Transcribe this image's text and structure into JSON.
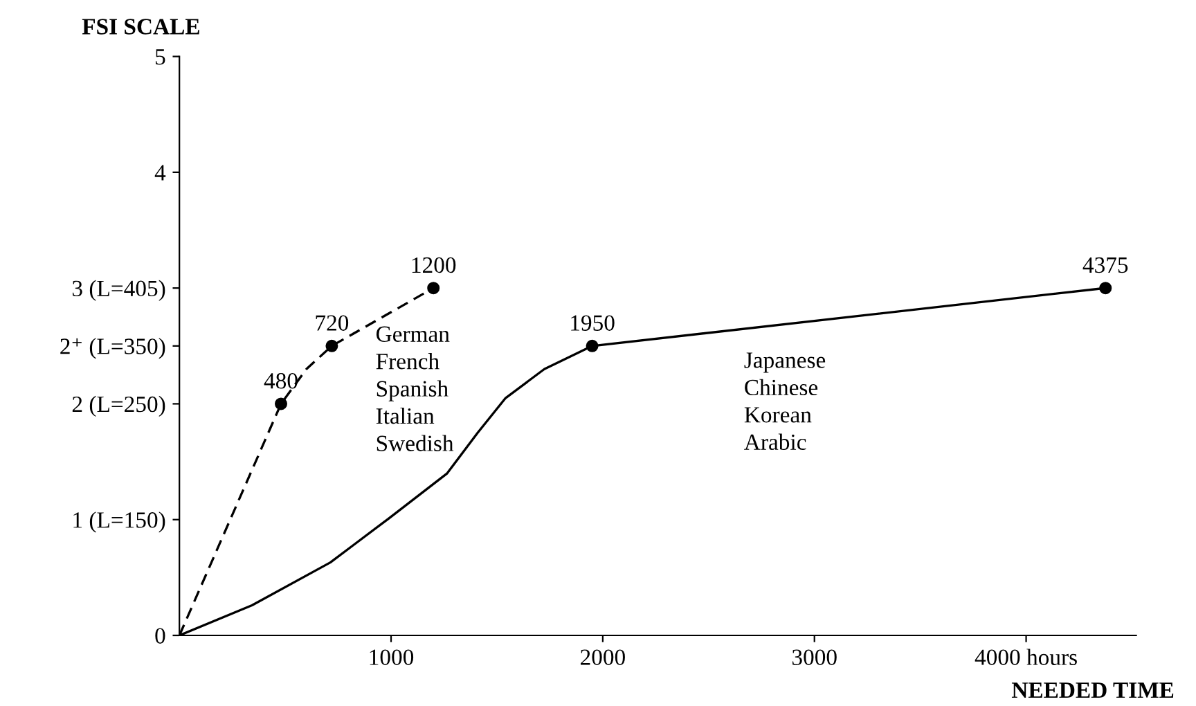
{
  "chart_data": {
    "type": "line",
    "ylabel": "FSI SCALE",
    "xlabel": "NEEDED TIME",
    "xlim": [
      0,
      4520
    ],
    "ylim": [
      0,
      5
    ],
    "xticks": [
      1000,
      2000,
      3000,
      {
        "value": 4000,
        "label": "4000 hours"
      }
    ],
    "yticks": [
      0,
      {
        "value": 1,
        "label": "1 (L=150)"
      },
      {
        "value": 2,
        "label": "2 (L=250)"
      },
      {
        "value": 2.5,
        "label": "2⁺ (L=350)"
      },
      {
        "value": 3,
        "label": "3 (L=405)"
      },
      4,
      5
    ],
    "grid": false,
    "legend": false,
    "series": [
      {
        "line_style": "dashed",
        "marker": "none",
        "color": "#000000",
        "x": [
          0,
          480,
          600,
          720,
          1200
        ],
        "values": [
          0,
          2,
          2.3,
          2.5,
          3
        ]
      },
      {
        "line_style": "solid",
        "marker": "none",
        "color": "#000000",
        "x": [
          0,
          343,
          713,
          989,
          1265,
          1409,
          1541,
          1724,
          1950,
          4375
        ],
        "values": [
          0,
          0.26,
          0.63,
          1.01,
          1.4,
          1.75,
          2.05,
          2.3,
          2.5,
          3
        ]
      },
      {
        "type": "scatter",
        "marker": "circle",
        "color": "#000000",
        "x": [
          480,
          720,
          1200,
          1950,
          4375
        ],
        "values": [
          2,
          2.5,
          3,
          2.5,
          3
        ]
      }
    ],
    "annotations": [
      {
        "text": "480",
        "x": 480,
        "y": 2
      },
      {
        "text": "720",
        "x": 720,
        "y": 2.5
      },
      {
        "text": "1200",
        "x": 1200,
        "y": 3
      },
      {
        "text": "1950",
        "x": 1950,
        "y": 2.5
      },
      {
        "text": "4375",
        "x": 4375,
        "y": 3
      },
      "German\nFrench\nSpanish\nItalian\nSwedish",
      "Japanese\nChinese\nKorean\nArabic"
    ]
  }
}
